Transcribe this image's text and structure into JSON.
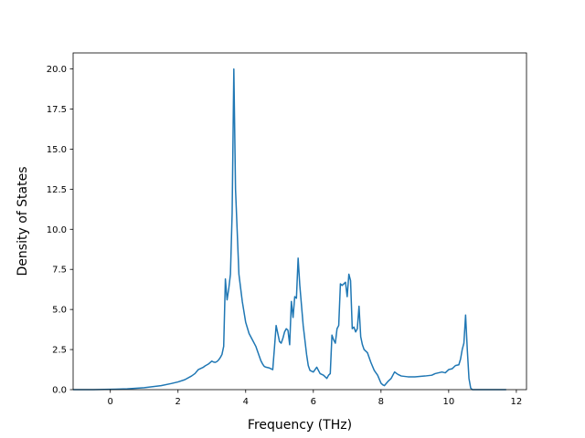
{
  "chart_data": {
    "type": "line",
    "title": "",
    "xlabel": "Frequency (THz)",
    "ylabel": "Density of States",
    "xlim": [
      -1.1,
      12.3
    ],
    "ylim": [
      0,
      21
    ],
    "xticks": [
      0,
      2,
      4,
      6,
      8,
      10,
      12
    ],
    "xtick_labels": [
      "0",
      "2",
      "4",
      "6",
      "8",
      "10",
      "12"
    ],
    "yticks": [
      0,
      2.5,
      5,
      7.5,
      10,
      12.5,
      15,
      17.5,
      20
    ],
    "ytick_labels": [
      "0.0",
      "2.5",
      "5.0",
      "7.5",
      "10.0",
      "12.5",
      "15.0",
      "17.5",
      "20.0"
    ],
    "grid": false,
    "series": [
      {
        "color": "#1f77b4",
        "x": [
          -1.1,
          -0.5,
          0.0,
          0.5,
          1.0,
          1.5,
          1.8,
          2.0,
          2.2,
          2.4,
          2.5,
          2.6,
          2.7,
          2.75,
          2.8,
          2.9,
          3.0,
          3.05,
          3.1,
          3.15,
          3.2,
          3.25,
          3.3,
          3.35,
          3.4,
          3.45,
          3.5,
          3.55,
          3.6,
          3.65,
          3.7,
          3.8,
          3.9,
          4.0,
          4.1,
          4.2,
          4.3,
          4.4,
          4.45,
          4.5,
          4.55,
          4.6,
          4.7,
          4.75,
          4.8,
          4.85,
          4.9,
          4.95,
          5.0,
          5.05,
          5.1,
          5.15,
          5.2,
          5.25,
          5.3,
          5.35,
          5.4,
          5.45,
          5.5,
          5.55,
          5.6,
          5.7,
          5.8,
          5.85,
          5.9,
          6.0,
          6.1,
          6.2,
          6.3,
          6.4,
          6.45,
          6.5,
          6.55,
          6.6,
          6.65,
          6.7,
          6.75,
          6.8,
          6.85,
          6.9,
          6.95,
          7.0,
          7.05,
          7.1,
          7.15,
          7.2,
          7.25,
          7.3,
          7.35,
          7.4,
          7.45,
          7.5,
          7.6,
          7.7,
          7.8,
          7.9,
          8.0,
          8.05,
          8.1,
          8.2,
          8.3,
          8.4,
          8.5,
          8.6,
          8.8,
          9.0,
          9.3,
          9.5,
          9.6,
          9.7,
          9.8,
          9.9,
          10.0,
          10.1,
          10.2,
          10.3,
          10.35,
          10.4,
          10.45,
          10.5,
          10.55,
          10.6,
          10.65,
          10.7,
          11.0,
          11.7
        ],
        "y": [
          0.0,
          0.0,
          0.02,
          0.05,
          0.12,
          0.25,
          0.38,
          0.48,
          0.62,
          0.85,
          1.0,
          1.25,
          1.35,
          1.4,
          1.48,
          1.6,
          1.78,
          1.72,
          1.7,
          1.75,
          1.85,
          2.0,
          2.2,
          2.7,
          6.9,
          5.6,
          6.3,
          7.2,
          11.0,
          20.0,
          12.5,
          7.2,
          5.5,
          4.2,
          3.5,
          3.1,
          2.7,
          2.1,
          1.8,
          1.6,
          1.45,
          1.4,
          1.35,
          1.3,
          1.25,
          2.6,
          4.0,
          3.5,
          3.0,
          2.9,
          3.2,
          3.6,
          3.8,
          3.7,
          2.8,
          5.5,
          4.5,
          5.8,
          5.7,
          8.2,
          6.5,
          4.0,
          2.2,
          1.5,
          1.2,
          1.1,
          1.4,
          1.0,
          0.9,
          0.7,
          0.9,
          1.0,
          3.4,
          3.1,
          2.9,
          3.8,
          4.0,
          6.6,
          6.5,
          6.6,
          6.7,
          5.8,
          7.2,
          6.8,
          3.8,
          3.9,
          3.6,
          3.8,
          5.2,
          3.3,
          2.8,
          2.5,
          2.3,
          1.7,
          1.2,
          0.9,
          0.4,
          0.3,
          0.25,
          0.5,
          0.7,
          1.1,
          0.95,
          0.85,
          0.8,
          0.8,
          0.85,
          0.9,
          1.0,
          1.05,
          1.1,
          1.05,
          1.25,
          1.3,
          1.5,
          1.55,
          1.9,
          2.5,
          2.9,
          4.65,
          2.5,
          0.7,
          0.1,
          0.0,
          0.0,
          0.0
        ]
      }
    ]
  }
}
